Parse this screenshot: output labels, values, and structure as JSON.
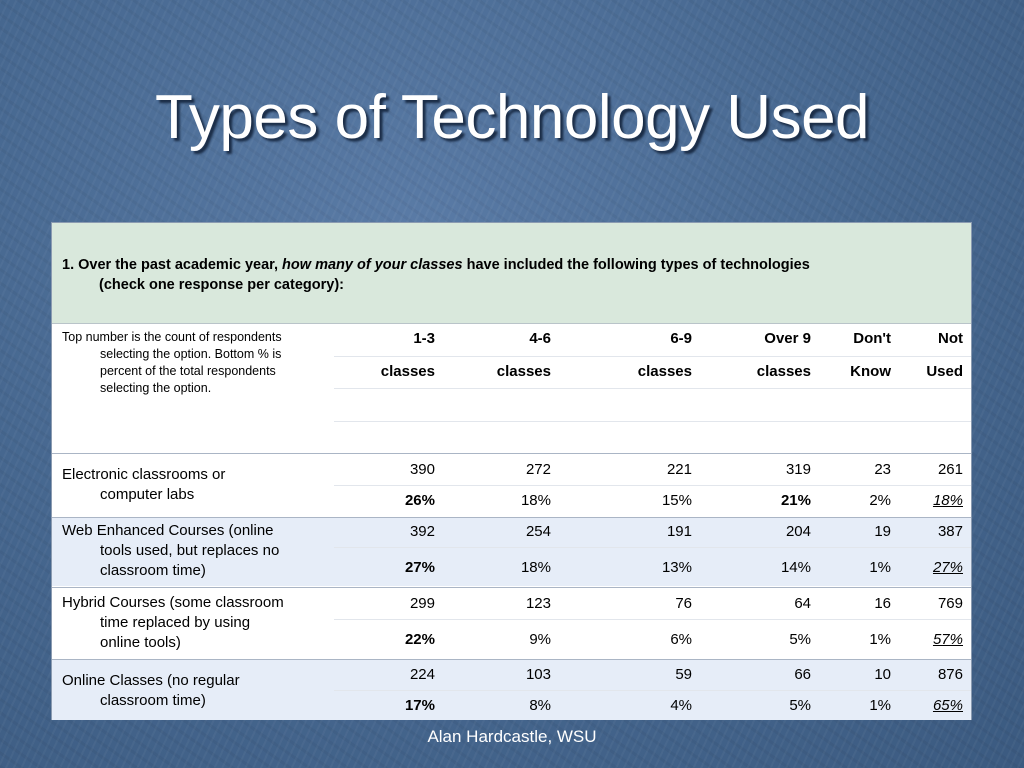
{
  "title": "Types of Technology Used",
  "question": {
    "prefix": "1. Over the past academic year, ",
    "emphasis": "how many of your classes",
    "suffix": " have included the following types of technologies",
    "line2": "(check one response per category):"
  },
  "note": {
    "line1": "Top number is the count of respondents",
    "rest": "selecting the option. Bottom % is percent of the total respondents selecting the option."
  },
  "columns": [
    {
      "top": "1-3",
      "bottom": "classes"
    },
    {
      "top": "4-6",
      "bottom": "classes"
    },
    {
      "top": "6-9",
      "bottom": "classes"
    },
    {
      "top": "Over 9",
      "bottom": "classes"
    },
    {
      "top": "Don't",
      "bottom": "Know"
    },
    {
      "top": "Not",
      "bottom": "Used"
    }
  ],
  "rows": [
    {
      "label1": "Electronic classrooms or",
      "label2": "computer labs",
      "counts": [
        "390",
        "272",
        "221",
        "319",
        "23",
        "261"
      ],
      "percents": [
        "26%",
        "18%",
        "15%",
        "21%",
        "2%",
        "18%"
      ]
    },
    {
      "label1": "Web Enhanced Courses (online",
      "label2": "tools used, but replaces no classroom time)",
      "counts": [
        "392",
        "254",
        "191",
        "204",
        "19",
        "387"
      ],
      "percents": [
        "27%",
        "18%",
        "13%",
        "14%",
        "1%",
        "27%"
      ]
    },
    {
      "label1": "Hybrid Courses (some classroom",
      "label2": "time replaced by using online tools)",
      "counts": [
        "299",
        "123",
        "76",
        "64",
        "16",
        "769"
      ],
      "percents": [
        "22%",
        "9%",
        "6%",
        "5%",
        "1%",
        "57%"
      ]
    },
    {
      "label1": "Online Classes (no regular",
      "label2": "classroom time)",
      "counts": [
        "224",
        "103",
        "59",
        "66",
        "10",
        "876"
      ],
      "percents": [
        "17%",
        "8%",
        "4%",
        "5%",
        "1%",
        "65%"
      ]
    }
  ],
  "footer": "Alan Hardcastle, WSU"
}
